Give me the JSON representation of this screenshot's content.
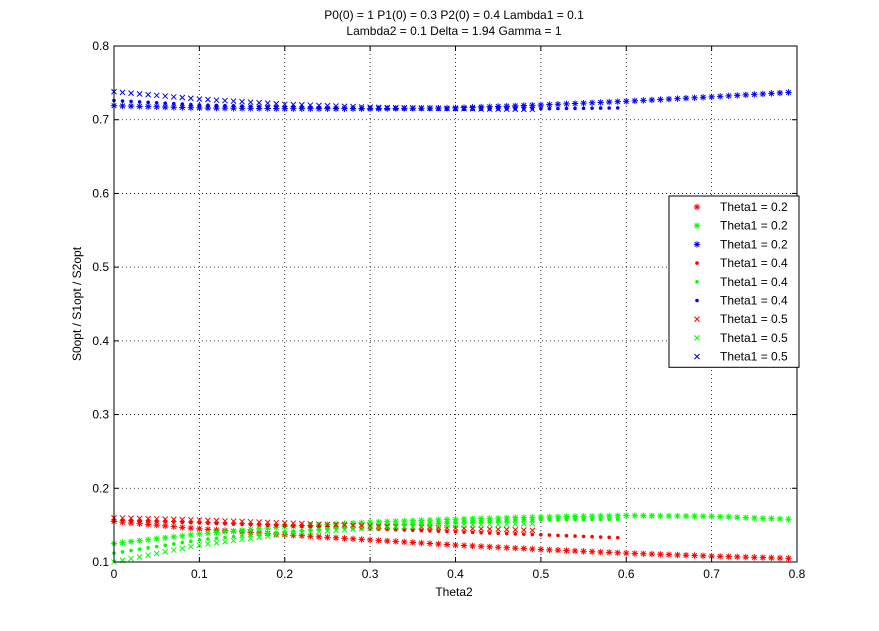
{
  "chart_data": {
    "type": "scatter",
    "title_lines": [
      "P0(0) = 1 P1(0) = 0.3 P2(0) = 0.4 Lambda1 = 0.1",
      "Lambda2 = 0.1 Delta = 1.94 Gamma = 1"
    ],
    "xlabel": "Theta2",
    "ylabel": "S0opt / S1opt / S2opt",
    "xlim": [
      0,
      0.8
    ],
    "ylim": [
      0.1,
      0.8
    ],
    "x_ticks": [
      "0",
      "0.1",
      "0.2",
      "0.3",
      "0.4",
      "0.5",
      "0.6",
      "0.7",
      "0.8"
    ],
    "y_ticks": [
      "0.1",
      "0.2",
      "0.3",
      "0.4",
      "0.5",
      "0.6",
      "0.7",
      "0.8"
    ],
    "grid": true,
    "legend_position": "right",
    "legend": [
      {
        "label": "Theta1 = 0.2",
        "color": "#ff0000",
        "marker": "asterisk"
      },
      {
        "label": "Theta1 = 0.2",
        "color": "#00ff00",
        "marker": "asterisk"
      },
      {
        "label": "Theta1 = 0.2",
        "color": "#0000ff",
        "marker": "asterisk"
      },
      {
        "label": "Theta1 = 0.4",
        "color": "#ff0000",
        "marker": "dot"
      },
      {
        "label": "Theta1 = 0.4",
        "color": "#00ff00",
        "marker": "dot"
      },
      {
        "label": "Theta1 = 0.4",
        "color": "#0000ff",
        "marker": "dot"
      },
      {
        "label": "Theta1 = 0.5",
        "color": "#ff0000",
        "marker": "x"
      },
      {
        "label": "Theta1 = 0.5",
        "color": "#00ff00",
        "marker": "x"
      },
      {
        "label": "Theta1 = 0.5",
        "color": "#0000ff",
        "marker": "x"
      }
    ],
    "series": [
      {
        "legend_index": 0,
        "color": "#ff0000",
        "marker": "asterisk",
        "x_range": [
          0,
          0.79
        ],
        "n": 80,
        "curve_x": [
          0,
          0.1,
          0.2,
          0.3,
          0.4,
          0.5,
          0.6,
          0.7,
          0.79
        ],
        "curve_y": [
          0.155,
          0.145,
          0.137,
          0.13,
          0.123,
          0.117,
          0.112,
          0.108,
          0.105
        ]
      },
      {
        "legend_index": 1,
        "color": "#00ff00",
        "marker": "asterisk",
        "x_range": [
          0,
          0.79
        ],
        "n": 80,
        "curve_x": [
          0,
          0.1,
          0.2,
          0.3,
          0.4,
          0.5,
          0.6,
          0.7,
          0.79
        ],
        "curve_y": [
          0.125,
          0.138,
          0.148,
          0.154,
          0.158,
          0.161,
          0.163,
          0.162,
          0.158
        ]
      },
      {
        "legend_index": 2,
        "color": "#0000ff",
        "marker": "asterisk",
        "x_range": [
          0,
          0.79
        ],
        "n": 80,
        "curve_x": [
          0,
          0.1,
          0.2,
          0.3,
          0.4,
          0.5,
          0.6,
          0.7,
          0.79
        ],
        "curve_y": [
          0.719,
          0.716,
          0.715,
          0.715,
          0.716,
          0.72,
          0.725,
          0.731,
          0.737
        ]
      },
      {
        "legend_index": 3,
        "color": "#ff0000",
        "marker": "dot",
        "x_range": [
          0,
          0.59
        ],
        "n": 60,
        "curve_x": [
          0,
          0.1,
          0.2,
          0.3,
          0.4,
          0.5,
          0.59
        ],
        "curve_y": [
          0.157,
          0.153,
          0.149,
          0.145,
          0.141,
          0.137,
          0.133
        ]
      },
      {
        "legend_index": 4,
        "color": "#00ff00",
        "marker": "dot",
        "x_range": [
          0,
          0.59
        ],
        "n": 60,
        "curve_x": [
          0,
          0.1,
          0.2,
          0.3,
          0.4,
          0.5,
          0.59
        ],
        "curve_y": [
          0.112,
          0.13,
          0.141,
          0.149,
          0.154,
          0.157,
          0.158
        ]
      },
      {
        "legend_index": 5,
        "color": "#0000ff",
        "marker": "dot",
        "x_range": [
          0,
          0.59
        ],
        "n": 60,
        "curve_x": [
          0,
          0.1,
          0.2,
          0.3,
          0.4,
          0.5,
          0.59
        ],
        "curve_y": [
          0.726,
          0.72,
          0.717,
          0.715,
          0.714,
          0.715,
          0.716
        ]
      },
      {
        "legend_index": 6,
        "color": "#ff0000",
        "marker": "x",
        "x_range": [
          0,
          0.49
        ],
        "n": 50,
        "curve_x": [
          0,
          0.1,
          0.2,
          0.3,
          0.4,
          0.49
        ],
        "curve_y": [
          0.16,
          0.157,
          0.153,
          0.149,
          0.146,
          0.143
        ]
      },
      {
        "legend_index": 7,
        "color": "#00ff00",
        "marker": "x",
        "x_range": [
          0,
          0.49
        ],
        "n": 50,
        "curve_x": [
          0,
          0.1,
          0.2,
          0.3,
          0.4,
          0.49
        ],
        "curve_y": [
          0.1,
          0.123,
          0.138,
          0.146,
          0.15,
          0.152
        ]
      },
      {
        "legend_index": 8,
        "color": "#0000ff",
        "marker": "x",
        "x_range": [
          0,
          0.49
        ],
        "n": 50,
        "curve_x": [
          0,
          0.1,
          0.2,
          0.3,
          0.4,
          0.49
        ],
        "curve_y": [
          0.738,
          0.728,
          0.721,
          0.717,
          0.715,
          0.714
        ]
      }
    ]
  }
}
